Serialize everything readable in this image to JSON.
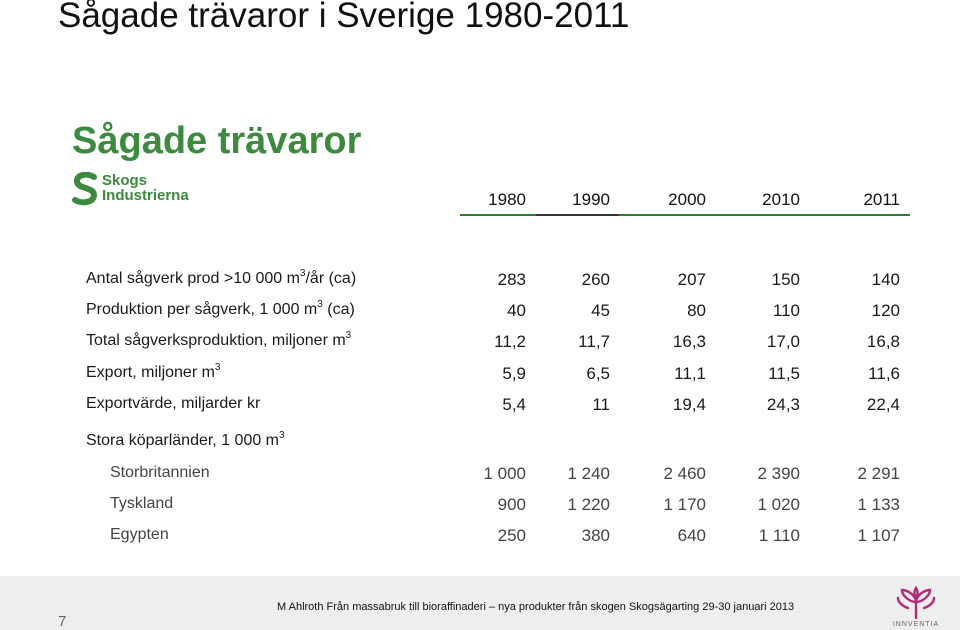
{
  "slide_title": "Sågade trävaror i Sverige 1980-2011",
  "heading": "Sågade trävaror",
  "logo": {
    "line1": "Skogs",
    "line2": "Industrierna",
    "icon": "s-logo-icon"
  },
  "years": [
    "1980",
    "1990",
    "2000",
    "2010",
    "2011"
  ],
  "rows": [
    {
      "label": "Antal sågverk prod >10 000 m",
      "sup": "3",
      "suffix": "/år (ca)",
      "values": [
        "283",
        "260",
        "207",
        "150",
        "140"
      ]
    },
    {
      "label": "Produktion per sågverk, 1 000 m",
      "sup": "3",
      "suffix": " (ca)",
      "values": [
        "40",
        "45",
        "80",
        "110",
        "120"
      ]
    },
    {
      "label": "Total sågverksproduktion, miljoner m",
      "sup": "3",
      "suffix": "",
      "values": [
        "11,2",
        "11,7",
        "16,3",
        "17,0",
        "16,8"
      ]
    },
    {
      "label": "Export, miljoner m",
      "sup": "3",
      "suffix": "",
      "values": [
        "5,9",
        "6,5",
        "11,1",
        "11,5",
        "11,6"
      ]
    },
    {
      "label": "Exportvärde, miljarder kr",
      "sup": "",
      "suffix": "",
      "values": [
        "5,4",
        "11",
        "19,4",
        "24,3",
        "22,4"
      ]
    }
  ],
  "section": {
    "label": "Stora köparländer, 1 000 m",
    "sup": "3"
  },
  "countries": [
    {
      "label": "Storbritannien",
      "values": [
        "1 000",
        "1 240",
        "2 460",
        "2 390",
        "2 291"
      ]
    },
    {
      "label": "Tyskland",
      "values": [
        "900",
        "1 220",
        "1 170",
        "1 020",
        "1 133"
      ]
    },
    {
      "label": "Egypten",
      "values": [
        "250",
        "380",
        "640",
        "1 110",
        "1 107"
      ]
    }
  ],
  "footer": {
    "page_number": "7",
    "text": "M Ahlroth Från massabruk till bioraffinaderi – nya produkter från skogen   Skogsägarting 29-30 januari 2013",
    "brand": "INNVENTIA",
    "brand_icon": "innventia-flower-icon"
  },
  "colors": {
    "green": "#3b8a3e",
    "header_rule": "#2f7a34",
    "magenta": "#b4287a"
  }
}
